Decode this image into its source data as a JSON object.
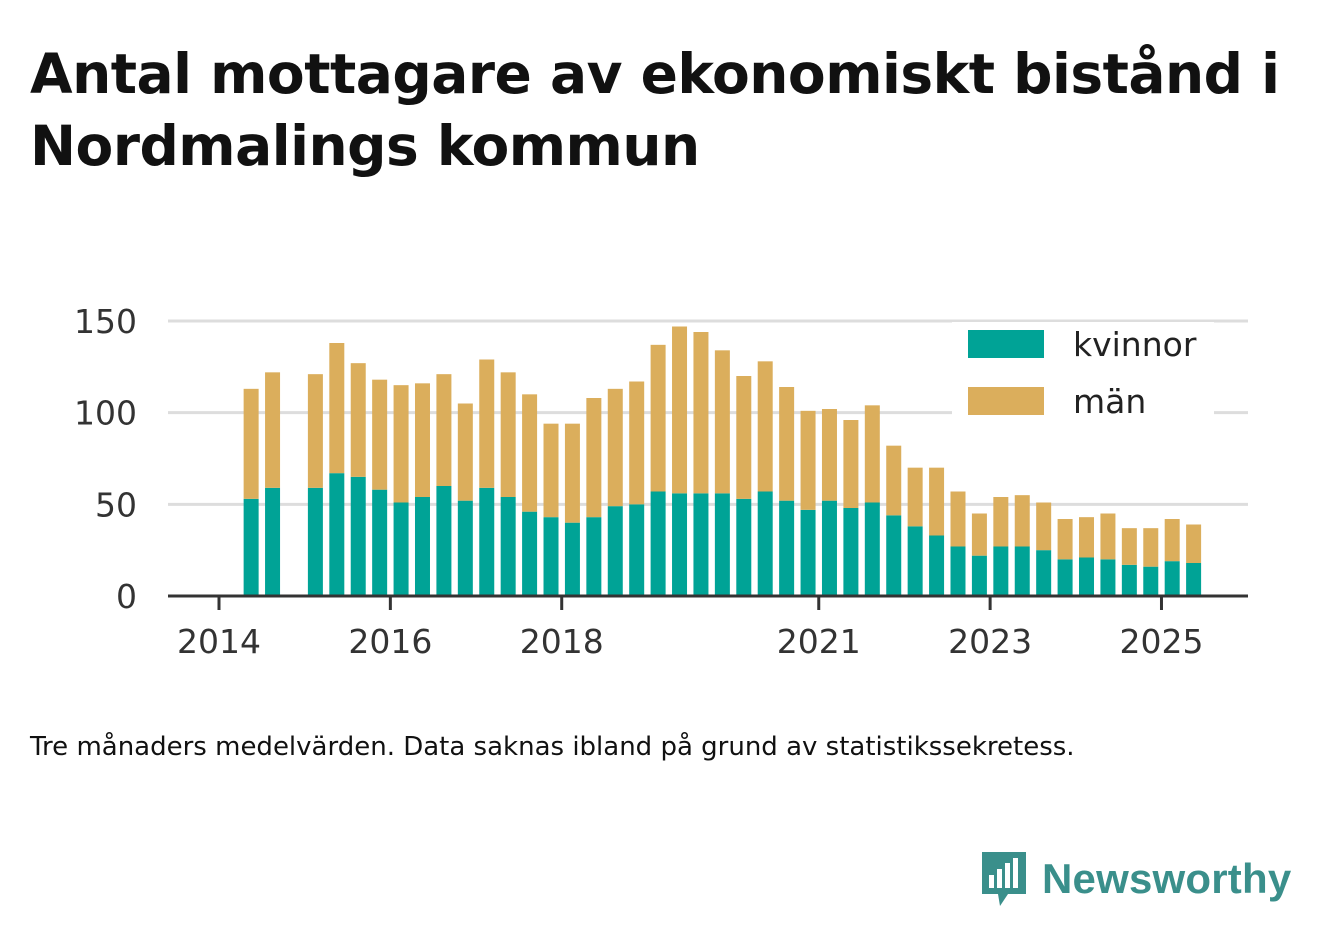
{
  "title": "Antal mottagare av ekonomiskt bistånd i Nordmalings kommun",
  "note": "Tre månaders medelvärden. Data saknas ibland på grund av statistikssekretess.",
  "brand": {
    "name": "Newsworthy",
    "icon": "newsworthy-logo-icon",
    "color": "#3a8f8b"
  },
  "chart_data": {
    "type": "bar",
    "stacked": true,
    "x_type": "date-quarters",
    "ylim": [
      0,
      150
    ],
    "y_ticks": [
      0,
      50,
      100,
      150
    ],
    "x_ticks": [
      "2014",
      "2016",
      "2018",
      "2021",
      "2023",
      "2025"
    ],
    "grid": true,
    "legend_position": "top-right",
    "categories": [
      "2014-Q2",
      "2014-Q3",
      "2014-Q4",
      "2015-Q1",
      "2015-Q2",
      "2015-Q3",
      "2015-Q4",
      "2016-Q1",
      "2016-Q2",
      "2016-Q3",
      "2016-Q4",
      "2017-Q1",
      "2017-Q2",
      "2017-Q3",
      "2017-Q4",
      "2018-Q1",
      "2018-Q2",
      "2018-Q3",
      "2018-Q4",
      "2019-Q1",
      "2019-Q2",
      "2019-Q3",
      "2019-Q4",
      "2020-Q1",
      "2020-Q2",
      "2020-Q3",
      "2020-Q4",
      "2021-Q1",
      "2021-Q2",
      "2021-Q3",
      "2021-Q4",
      "2022-Q1",
      "2022-Q2",
      "2022-Q3",
      "2022-Q4",
      "2023-Q1",
      "2023-Q2",
      "2023-Q3",
      "2023-Q4",
      "2024-Q1",
      "2024-Q2",
      "2024-Q3",
      "2024-Q4",
      "2025-Q1",
      "2025-Q2"
    ],
    "series": [
      {
        "name": "kvinnor",
        "color": "#00a396",
        "values": [
          53,
          59,
          null,
          59,
          67,
          65,
          58,
          51,
          54,
          60,
          52,
          59,
          54,
          46,
          43,
          40,
          43,
          49,
          50,
          57,
          56,
          56,
          56,
          53,
          57,
          52,
          47,
          52,
          48,
          51,
          44,
          38,
          33,
          27,
          22,
          27,
          27,
          25,
          20,
          21,
          20,
          17,
          16,
          19,
          18
        ]
      },
      {
        "name": "män",
        "color": "#dbae5c",
        "values": [
          60,
          63,
          null,
          62,
          71,
          62,
          60,
          64,
          62,
          61,
          53,
          70,
          68,
          64,
          51,
          54,
          65,
          64,
          67,
          80,
          91,
          88,
          78,
          67,
          71,
          62,
          54,
          50,
          48,
          53,
          38,
          32,
          37,
          30,
          23,
          27,
          28,
          26,
          22,
          22,
          25,
          20,
          21,
          23,
          21
        ]
      }
    ]
  }
}
